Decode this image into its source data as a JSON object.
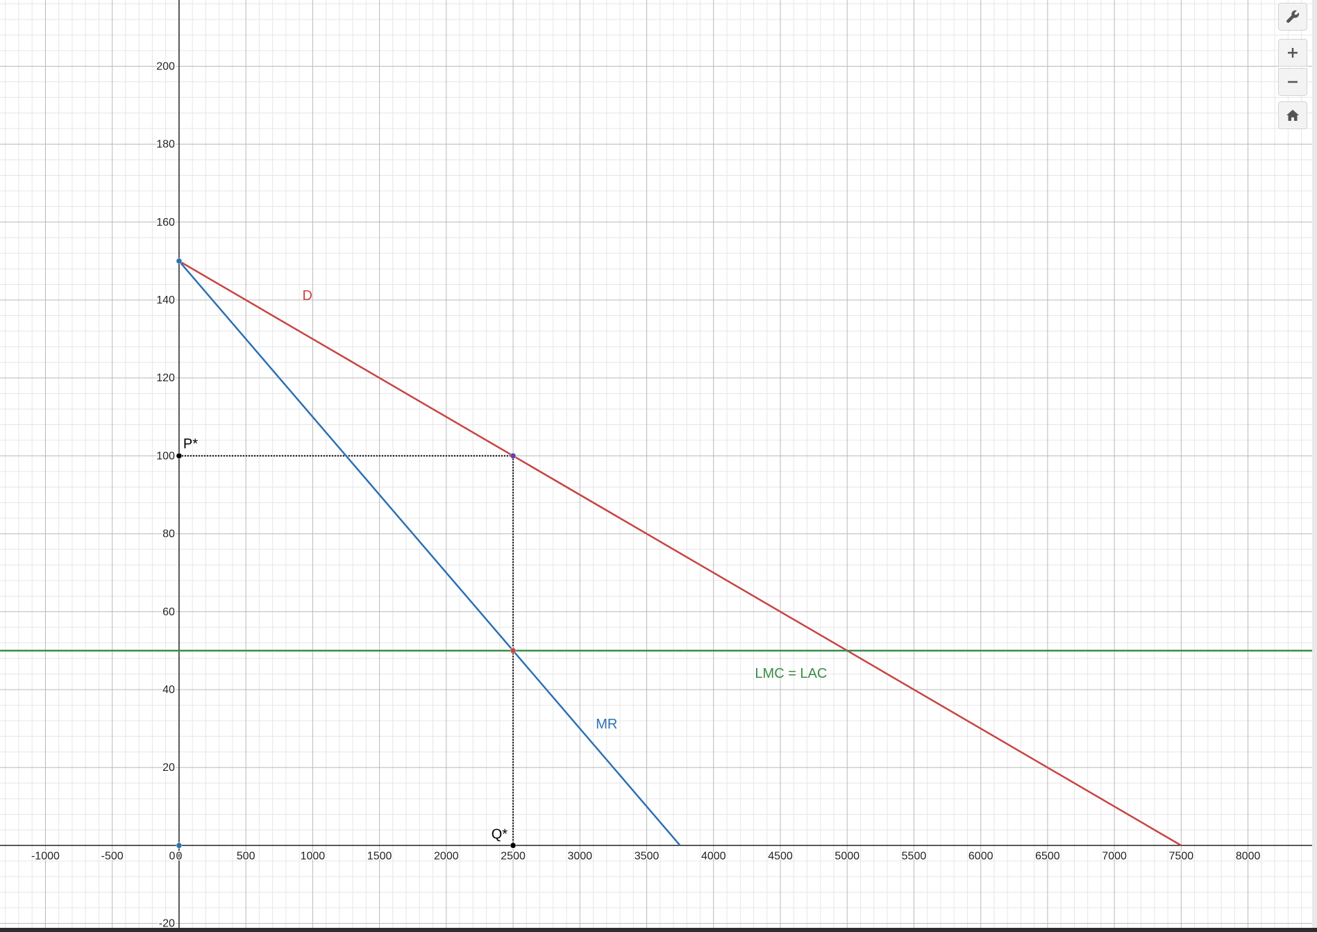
{
  "chart_data": {
    "type": "line",
    "title": "",
    "xlabel": "",
    "ylabel": "",
    "xlim": [
      -1340,
      8480
    ],
    "ylim": [
      -21.5,
      217
    ],
    "grid": true,
    "x_ticks": [
      -1000,
      -500,
      0,
      500,
      1000,
      1500,
      2000,
      2500,
      3000,
      3500,
      4000,
      4500,
      5000,
      5500,
      6000,
      6500,
      7000,
      7500,
      8000
    ],
    "y_ticks": [
      -20,
      20,
      40,
      60,
      80,
      100,
      120,
      140,
      160,
      180,
      200
    ],
    "series": [
      {
        "name": "D",
        "color": "#c74440",
        "x": [
          0,
          7500
        ],
        "y": [
          150,
          0
        ]
      },
      {
        "name": "MR",
        "color": "#2d70b3",
        "x": [
          0,
          3750
        ],
        "y": [
          150,
          0
        ]
      },
      {
        "name": "LMC = LAC",
        "color": "#388c46",
        "x": [
          -1340,
          8480
        ],
        "y": [
          50,
          50
        ]
      }
    ],
    "guides": [
      {
        "from": [
          0,
          100
        ],
        "to": [
          2500,
          100
        ],
        "style": "dotted"
      },
      {
        "from": [
          2500,
          100
        ],
        "to": [
          2500,
          0
        ],
        "style": "dotted"
      }
    ],
    "points": [
      {
        "x": 0,
        "y": 100,
        "label": "P*",
        "color": "#000000"
      },
      {
        "x": 2500,
        "y": 0,
        "label": "Q*",
        "color": "#000000"
      },
      {
        "x": 2500,
        "y": 100,
        "label": "",
        "color": "#6042a6"
      },
      {
        "x": 2500,
        "y": 50,
        "label": "",
        "color": "#c74440"
      },
      {
        "x": 0,
        "y": 150,
        "label": "",
        "color": "#2d70b3"
      },
      {
        "x": 0,
        "y": 0,
        "label": "",
        "color": "#2d70b3"
      }
    ],
    "annotations": [
      {
        "text": "D",
        "x": 960,
        "y": 140,
        "color": "#c74440"
      },
      {
        "text": "MR",
        "x": 3200,
        "y": 30,
        "color": "#2d70b3"
      },
      {
        "text": "LMC = LAC",
        "x": 4580,
        "y": 43,
        "color": "#388c46"
      }
    ]
  },
  "toolbar": {
    "settings_icon": "wrench-icon",
    "zoom_in_icon": "plus-icon",
    "zoom_out_icon": "minus-icon",
    "home_icon": "home-icon"
  }
}
